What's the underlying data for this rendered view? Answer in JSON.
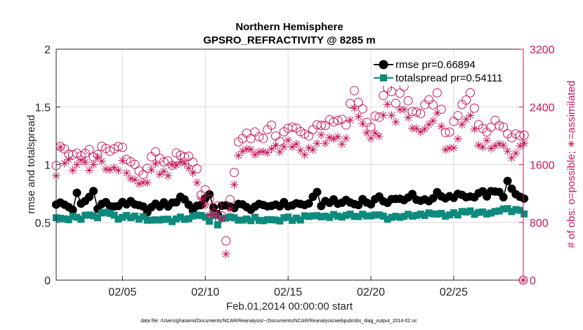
{
  "chart_data": {
    "type": "line",
    "title": [
      "Northern Hemisphere",
      "GPSRO_REFRACTIVITY @ 8285 m"
    ],
    "xlabel": "Feb.01,2014 00:00:00 start",
    "ylabel_left": "rmse and totalspread",
    "ylabel_right": "# of obs: o=possible; ∗=assimilated",
    "footnote": "data file: /Users/gharamti/Documents/NCAR/Reanalysis/~/Documents/NCAR/Reanalysis/webpub/obs_diag_output_2014-02.nc",
    "x_range_days": [
      0,
      28.2
    ],
    "x_ticks": [
      {
        "day": 4,
        "label": "02/05"
      },
      {
        "day": 9,
        "label": "02/10"
      },
      {
        "day": 14,
        "label": "02/15"
      },
      {
        "day": 19,
        "label": "02/20"
      },
      {
        "day": 24,
        "label": "02/25"
      }
    ],
    "ylim_left": [
      0,
      2
    ],
    "yticks_left": [
      "0",
      "0.5",
      "1",
      "1.5",
      "2"
    ],
    "ylim_right": [
      0,
      3200
    ],
    "yticks_right": [
      "0",
      "800",
      "1600",
      "2400",
      "3200"
    ],
    "grid": true,
    "legend_position": "top-right",
    "series": [
      {
        "name": "rmse",
        "legend": "rmse pr=0.66894",
        "color": "#000000",
        "marker": "circle",
        "axis": "left",
        "keypoints": [
          [
            0,
            0.67
          ],
          [
            0.5,
            0.65
          ],
          [
            1,
            0.62
          ],
          [
            1.25,
            0.74
          ],
          [
            1.5,
            0.65
          ],
          [
            2,
            0.72
          ],
          [
            2.25,
            0.77
          ],
          [
            2.5,
            0.64
          ],
          [
            3,
            0.67
          ],
          [
            3.5,
            0.62
          ],
          [
            4,
            0.68
          ],
          [
            4.5,
            0.66
          ],
          [
            5,
            0.63
          ],
          [
            5.5,
            0.61
          ],
          [
            6,
            0.64
          ],
          [
            6.5,
            0.66
          ],
          [
            7,
            0.65
          ],
          [
            7.5,
            0.73
          ],
          [
            8,
            0.66
          ],
          [
            8.25,
            0.61
          ],
          [
            8.5,
            0.64
          ],
          [
            9,
            0.7
          ],
          [
            9.25,
            0.72
          ],
          [
            9.5,
            0.64
          ],
          [
            9.75,
            0.58
          ],
          [
            10,
            0.63
          ],
          [
            10.5,
            0.63
          ],
          [
            11,
            0.66
          ],
          [
            11.5,
            0.62
          ],
          [
            12,
            0.64
          ],
          [
            12.5,
            0.63
          ],
          [
            13,
            0.65
          ],
          [
            13.5,
            0.66
          ],
          [
            14,
            0.65
          ],
          [
            14.5,
            0.66
          ],
          [
            15,
            0.65
          ],
          [
            15.5,
            0.7
          ],
          [
            15.75,
            0.74
          ],
          [
            16,
            0.66
          ],
          [
            16.5,
            0.69
          ],
          [
            17,
            0.66
          ],
          [
            17.5,
            0.69
          ],
          [
            18,
            0.66
          ],
          [
            18.5,
            0.69
          ],
          [
            19,
            0.67
          ],
          [
            19.5,
            0.7
          ],
          [
            20,
            0.69
          ],
          [
            20.5,
            0.71
          ],
          [
            21,
            0.68
          ],
          [
            21.5,
            0.74
          ],
          [
            22,
            0.69
          ],
          [
            22.5,
            0.7
          ],
          [
            23,
            0.74
          ],
          [
            23.5,
            0.7
          ],
          [
            24,
            0.72
          ],
          [
            24.5,
            0.74
          ],
          [
            25,
            0.72
          ],
          [
            25.5,
            0.76
          ],
          [
            26,
            0.74
          ],
          [
            26.5,
            0.76
          ],
          [
            27,
            0.74
          ],
          [
            27.25,
            0.85
          ],
          [
            27.5,
            0.77
          ],
          [
            27.75,
            0.74
          ],
          [
            28,
            0.72
          ],
          [
            28.25,
            0.7
          ]
        ]
      },
      {
        "name": "totalspread",
        "legend": "totalspread pr=0.54111",
        "color": "#0e8a7e",
        "marker": "square",
        "axis": "left",
        "keypoints": [
          [
            0,
            0.54
          ],
          [
            0.5,
            0.53
          ],
          [
            1,
            0.55
          ],
          [
            1.5,
            0.53
          ],
          [
            2,
            0.57
          ],
          [
            2.5,
            0.55
          ],
          [
            3,
            0.58
          ],
          [
            3.5,
            0.55
          ],
          [
            4,
            0.54
          ],
          [
            4.5,
            0.55
          ],
          [
            5,
            0.54
          ],
          [
            5.5,
            0.53
          ],
          [
            6,
            0.52
          ],
          [
            6.5,
            0.53
          ],
          [
            7,
            0.52
          ],
          [
            7.5,
            0.53
          ],
          [
            8,
            0.54
          ],
          [
            8.5,
            0.55
          ],
          [
            9,
            0.56
          ],
          [
            9.25,
            0.51
          ],
          [
            9.5,
            0.55
          ],
          [
            9.75,
            0.47
          ],
          [
            10,
            0.55
          ],
          [
            10.5,
            0.53
          ],
          [
            11,
            0.52
          ],
          [
            11.5,
            0.53
          ],
          [
            12,
            0.53
          ],
          [
            12.5,
            0.52
          ],
          [
            13,
            0.52
          ],
          [
            13.5,
            0.52
          ],
          [
            14,
            0.53
          ],
          [
            14.5,
            0.53
          ],
          [
            15,
            0.54
          ],
          [
            15.5,
            0.56
          ],
          [
            16,
            0.55
          ],
          [
            16.5,
            0.56
          ],
          [
            17,
            0.56
          ],
          [
            17.5,
            0.55
          ],
          [
            18,
            0.56
          ],
          [
            18.5,
            0.57
          ],
          [
            19,
            0.55
          ],
          [
            19.5,
            0.56
          ],
          [
            20,
            0.54
          ],
          [
            20.5,
            0.55
          ],
          [
            21,
            0.56
          ],
          [
            21.5,
            0.55
          ],
          [
            22,
            0.56
          ],
          [
            22.5,
            0.57
          ],
          [
            23,
            0.58
          ],
          [
            23.5,
            0.57
          ],
          [
            24,
            0.57
          ],
          [
            24.5,
            0.58
          ],
          [
            25,
            0.59
          ],
          [
            25.5,
            0.58
          ],
          [
            26,
            0.57
          ],
          [
            26.5,
            0.59
          ],
          [
            27,
            0.6
          ],
          [
            27.5,
            0.61
          ],
          [
            28,
            0.59
          ],
          [
            28.25,
            0.58
          ]
        ]
      },
      {
        "name": "possible",
        "color": "#c8175a",
        "marker": "open-circle",
        "axis": "right",
        "keypoints": [
          [
            0,
            1550
          ],
          [
            0.25,
            1900
          ],
          [
            0.5,
            1760
          ],
          [
            0.75,
            1790
          ],
          [
            1,
            1760
          ],
          [
            1.5,
            1740
          ],
          [
            2,
            1800
          ],
          [
            2.5,
            1720
          ],
          [
            3,
            1860
          ],
          [
            3.5,
            1780
          ],
          [
            4,
            1820
          ],
          [
            4.5,
            1640
          ],
          [
            5,
            1480
          ],
          [
            5.5,
            1560
          ],
          [
            6,
            1720
          ],
          [
            6.5,
            1660
          ],
          [
            7,
            1650
          ],
          [
            7.5,
            1760
          ],
          [
            8,
            1700
          ],
          [
            8.5,
            1540
          ],
          [
            8.75,
            1210
          ],
          [
            9,
            1190
          ],
          [
            9.25,
            1050
          ],
          [
            9.5,
            980
          ],
          [
            9.75,
            1000
          ],
          [
            10,
            950
          ],
          [
            10.25,
            475
          ],
          [
            10.5,
            1110
          ],
          [
            11,
            1900
          ],
          [
            11.5,
            2040
          ],
          [
            12,
            2020
          ],
          [
            12.5,
            2000
          ],
          [
            13,
            2080
          ],
          [
            13.5,
            1980
          ],
          [
            14,
            2120
          ],
          [
            14.5,
            2070
          ],
          [
            15,
            2010
          ],
          [
            15.5,
            2090
          ],
          [
            16,
            2190
          ],
          [
            16.5,
            2160
          ],
          [
            17,
            2190
          ],
          [
            17.5,
            2170
          ],
          [
            18,
            2630
          ],
          [
            18.5,
            2360
          ],
          [
            19,
            2140
          ],
          [
            19.5,
            2300
          ],
          [
            19.75,
            2500
          ],
          [
            20,
            2640
          ],
          [
            20.5,
            2510
          ],
          [
            21,
            2620
          ],
          [
            21.5,
            2330
          ],
          [
            22,
            2290
          ],
          [
            22.5,
            2440
          ],
          [
            23,
            2550
          ],
          [
            23.5,
            2070
          ],
          [
            24,
            2130
          ],
          [
            24.5,
            2400
          ],
          [
            25,
            2560
          ],
          [
            25.5,
            2180
          ],
          [
            26,
            2110
          ],
          [
            26.5,
            2160
          ],
          [
            27,
            2150
          ],
          [
            27.5,
            2040
          ],
          [
            28,
            2000
          ],
          [
            28.25,
            2030
          ]
        ]
      },
      {
        "name": "assimilated",
        "color": "#c8175a",
        "marker": "asterisk",
        "axis": "right",
        "keypoints": [
          [
            0,
            1480
          ],
          [
            0.25,
            1800
          ],
          [
            0.5,
            1570
          ],
          [
            0.75,
            1650
          ],
          [
            1,
            1580
          ],
          [
            1.5,
            1620
          ],
          [
            2,
            1580
          ],
          [
            2.5,
            1640
          ],
          [
            3,
            1540
          ],
          [
            3.5,
            1560
          ],
          [
            4,
            1600
          ],
          [
            4.5,
            1430
          ],
          [
            5,
            1320
          ],
          [
            5.5,
            1380
          ],
          [
            6,
            1550
          ],
          [
            6.5,
            1480
          ],
          [
            7,
            1530
          ],
          [
            7.5,
            1650
          ],
          [
            8,
            1560
          ],
          [
            8.5,
            1420
          ],
          [
            8.75,
            1090
          ],
          [
            9,
            1060
          ],
          [
            9.25,
            940
          ],
          [
            9.5,
            870
          ],
          [
            9.75,
            830
          ],
          [
            10,
            880
          ],
          [
            10.25,
            420
          ],
          [
            10.5,
            980
          ],
          [
            11,
            1700
          ],
          [
            11.5,
            1800
          ],
          [
            12,
            1790
          ],
          [
            12.5,
            1770
          ],
          [
            13,
            1850
          ],
          [
            13.5,
            1760
          ],
          [
            14,
            1890
          ],
          [
            14.5,
            1840
          ],
          [
            15,
            1770
          ],
          [
            15.5,
            1870
          ],
          [
            16,
            1960
          ],
          [
            16.5,
            1920
          ],
          [
            17,
            1950
          ],
          [
            17.5,
            1940
          ],
          [
            18,
            2370
          ],
          [
            18.5,
            2150
          ],
          [
            19,
            1900
          ],
          [
            19.5,
            2060
          ],
          [
            19.75,
            2240
          ],
          [
            20,
            2380
          ],
          [
            20.5,
            2240
          ],
          [
            21,
            2350
          ],
          [
            21.5,
            2090
          ],
          [
            22,
            2040
          ],
          [
            22.5,
            2200
          ],
          [
            23,
            2330
          ],
          [
            23.5,
            1820
          ],
          [
            24,
            1900
          ],
          [
            24.5,
            2150
          ],
          [
            25,
            2300
          ],
          [
            25.5,
            1930
          ],
          [
            26,
            1870
          ],
          [
            26.5,
            1900
          ],
          [
            27,
            1870
          ],
          [
            27.5,
            1750
          ],
          [
            28,
            1800
          ],
          [
            28.25,
            1900
          ]
        ]
      }
    ]
  }
}
